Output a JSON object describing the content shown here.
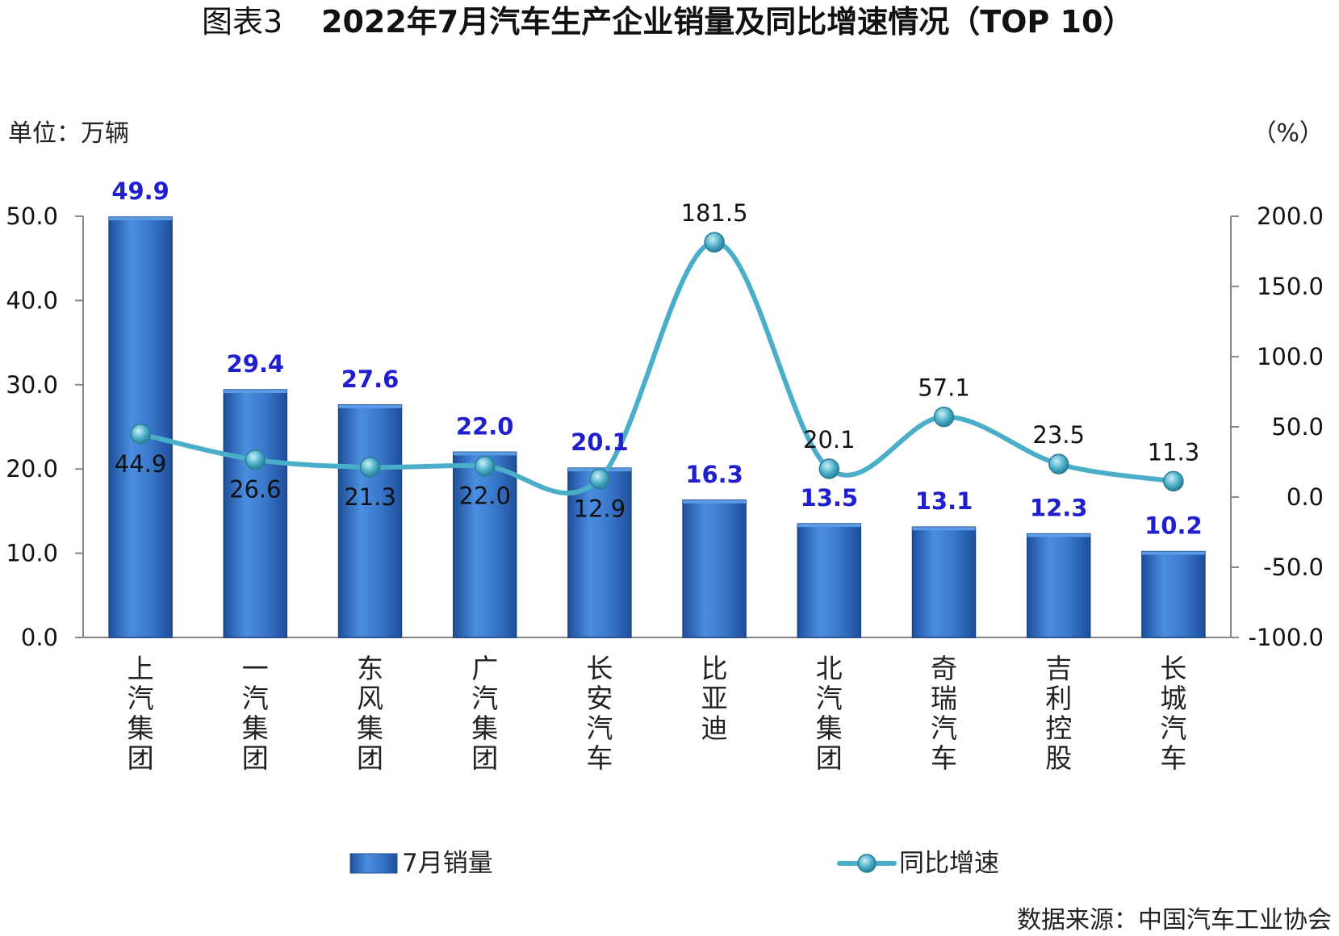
{
  "chart_title": {
    "prefix": "图表3",
    "main": "2022年7月汽车生产企业销量及同比增速情况（TOP 10）"
  },
  "left_unit": "单位：万辆",
  "right_unit": "（%）",
  "source": "数据来源：中国汽车工业协会",
  "colors": {
    "bar": "#3a78cc",
    "bar_dark": "#1e4f9a",
    "line": "#4aaec8",
    "bar_label": "#1f1fcf"
  },
  "chart_data": {
    "type": "bar",
    "categories": [
      "上汽集团",
      "一汽集团",
      "东风集团",
      "广汽集团",
      "长安汽车",
      "比亚迪",
      "北汽集团",
      "奇瑞汽车",
      "吉利控股",
      "长城汽车"
    ],
    "series": [
      {
        "name": "7月销量",
        "type": "bar",
        "axis": "left",
        "values": [
          49.9,
          29.4,
          27.6,
          22.0,
          20.1,
          16.3,
          13.5,
          13.1,
          12.3,
          10.2
        ],
        "labels": [
          "49.9",
          "29.4",
          "27.6",
          "22.0",
          "20.1",
          "16.3",
          "13.5",
          "13.1",
          "12.3",
          "10.2"
        ]
      },
      {
        "name": "同比增速",
        "type": "line",
        "axis": "right",
        "values": [
          44.9,
          26.6,
          21.3,
          22.0,
          12.9,
          181.5,
          20.1,
          57.1,
          23.5,
          11.3
        ],
        "labels": [
          "44.9",
          "26.6",
          "21.3",
          "22.0",
          "12.9",
          "181.5",
          "20.1",
          "57.1",
          "23.5",
          "11.3"
        ]
      }
    ],
    "y_left": {
      "min": 0,
      "max": 50,
      "ticks": [
        "0.0",
        "10.0",
        "20.0",
        "30.0",
        "40.0",
        "50.0"
      ]
    },
    "y_right": {
      "min": -100,
      "max": 200,
      "ticks": [
        "-100.0",
        "-50.0",
        "0.0",
        "50.0",
        "100.0",
        "150.0",
        "200.0"
      ]
    },
    "legend_position": "bottom",
    "grid": false
  }
}
